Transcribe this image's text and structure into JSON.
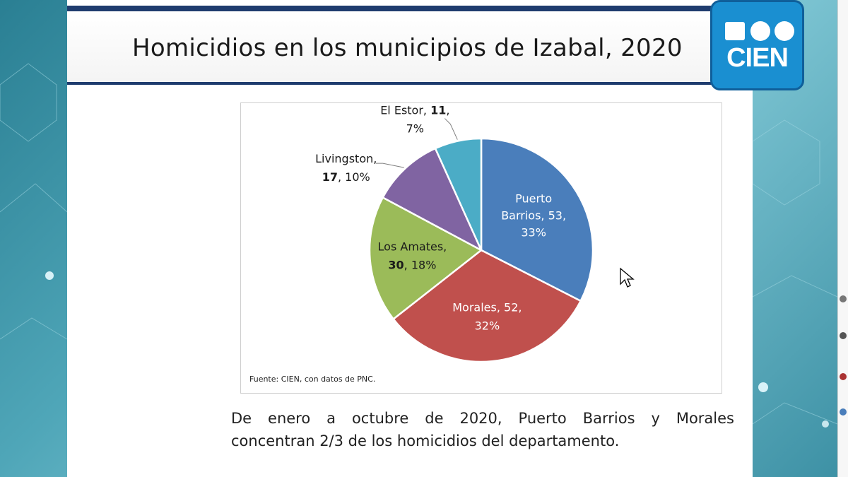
{
  "slide": {
    "title": "Homicidios en los municipios de Izabal, 2020",
    "logo_text": "CIEN",
    "source": "Fuente: CIEN, con datos de PNC.",
    "caption_line1": "De enero a octubre de 2020, Puerto Barrios y Morales",
    "caption_line2": "concentran 2/3 de los homicidios del departamento."
  },
  "colors": {
    "slide_accent": "#1f3c6e",
    "logo_blue": "#1a8fd1"
  },
  "chart_data": {
    "type": "pie",
    "start_angle_deg": 0,
    "slices": [
      {
        "label": "Puerto Barrios",
        "value": 53,
        "percent": "33%",
        "color": "#4a7ebb"
      },
      {
        "label": "Morales",
        "value": 52,
        "percent": "32%",
        "color": "#c0504d"
      },
      {
        "label": "Los Amates",
        "value": 30,
        "percent": "18%",
        "color": "#9bbb59"
      },
      {
        "label": "Livingston",
        "value": 17,
        "percent": "10%",
        "color": "#8064a2"
      },
      {
        "label": "El Estor",
        "value": 11,
        "percent": "7%",
        "color": "#4bacc6"
      }
    ],
    "labels": [
      {
        "line1": "Puerto",
        "line2": "Barrios, 53,",
        "line3": "33%"
      },
      {
        "line1": "Morales, 52,",
        "line2": "32%"
      },
      {
        "line1": "Los Amates,",
        "bold": "30",
        "rest": ", 18%"
      },
      {
        "line1": "Livingston,",
        "bold": "17",
        "rest": ", 10%"
      },
      {
        "line1pre": "El Estor, ",
        "bold": "11",
        "line1post": ",",
        "line2": "7%"
      }
    ]
  }
}
